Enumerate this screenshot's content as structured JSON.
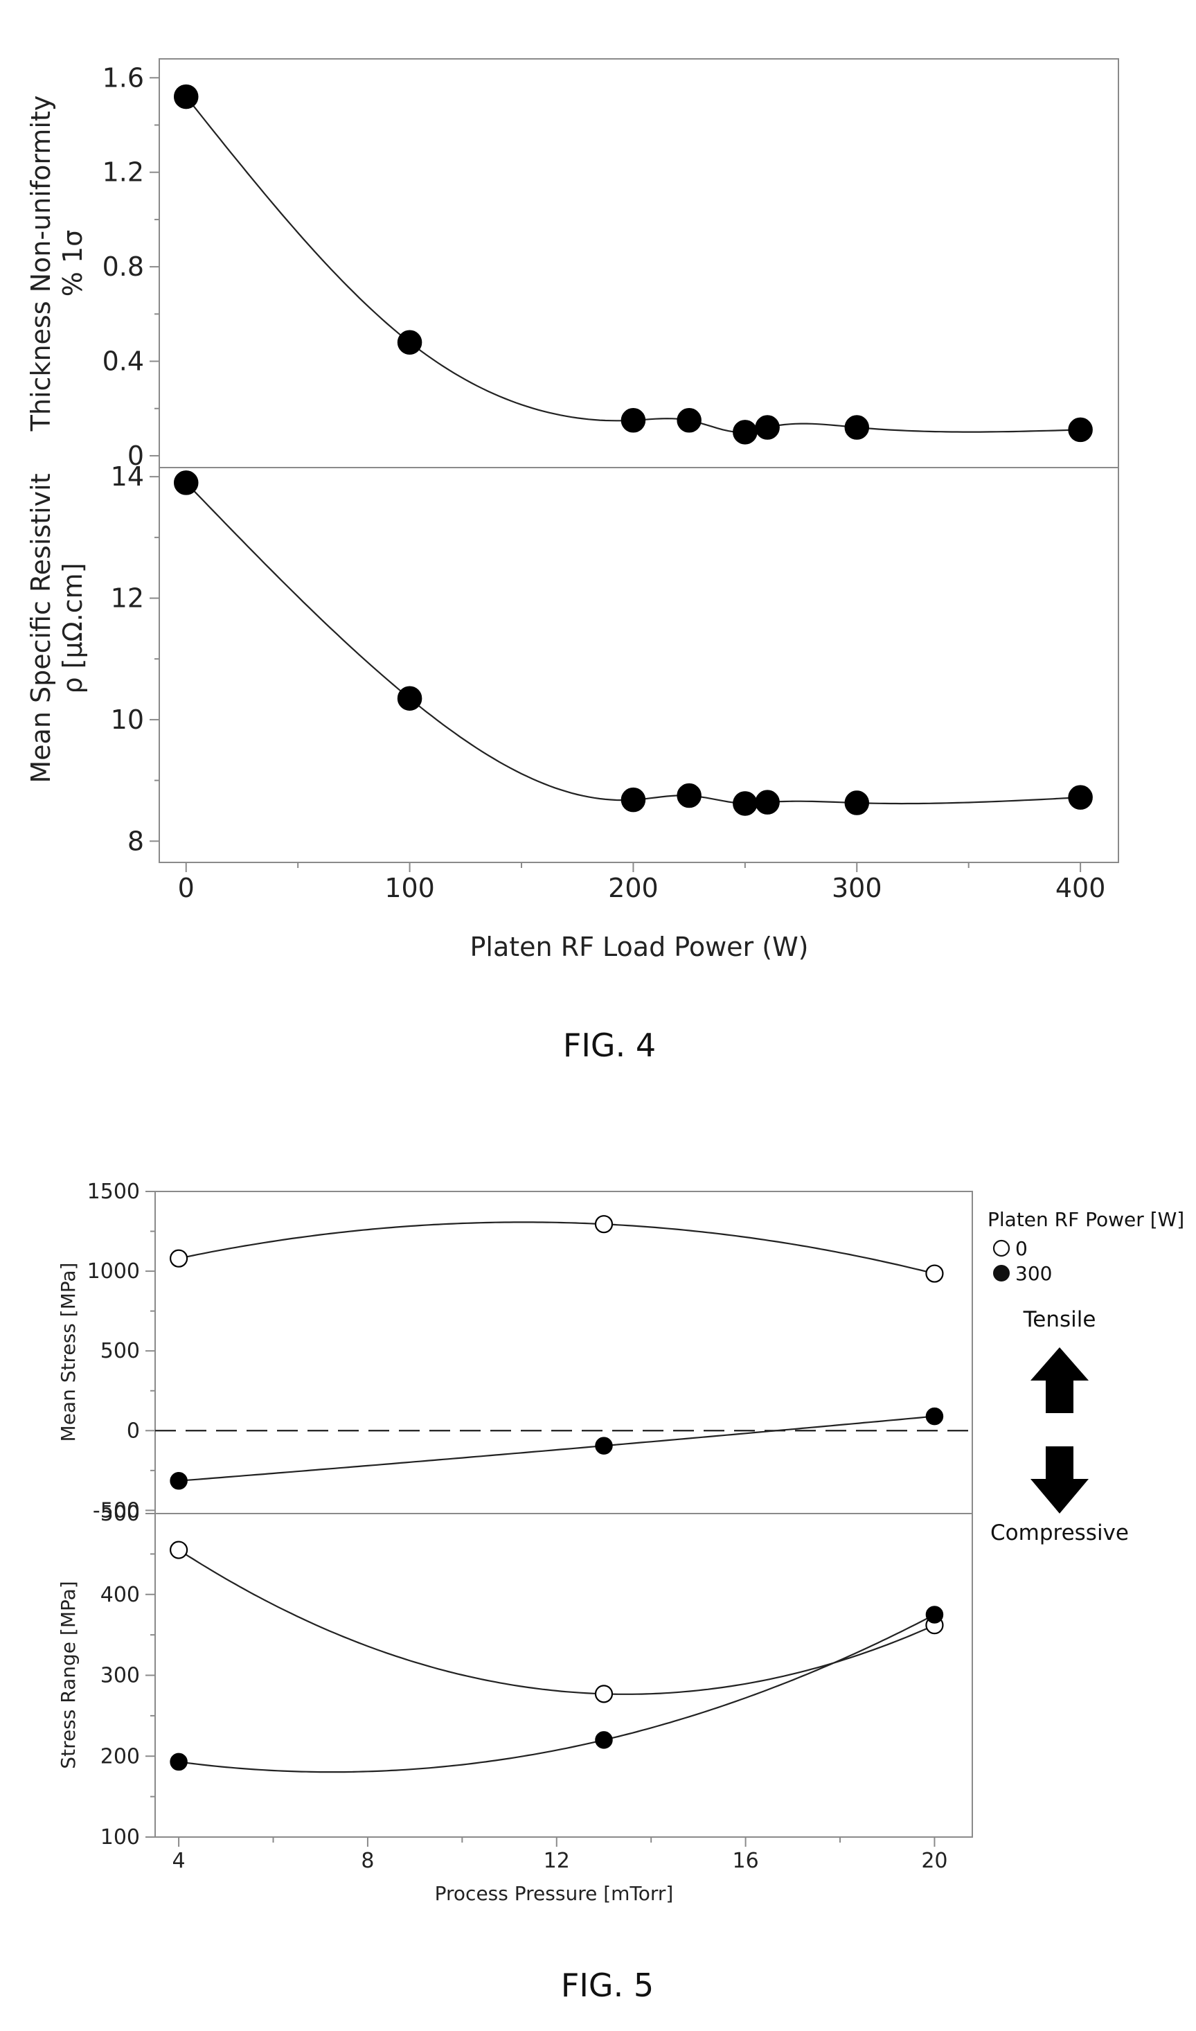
{
  "figures": [
    {
      "caption": "FIG. 4"
    },
    {
      "caption": "FIG. 5"
    }
  ],
  "chart_data": [
    {
      "type": "scatter",
      "figure": "FIG. 4",
      "panel": "top",
      "ylabel_lines": [
        "Thickness Non-uniformity",
        "% 1σ"
      ],
      "xlabel": "",
      "ylim": [
        -0.05,
        1.68
      ],
      "yticks": [
        0,
        0.4,
        0.8,
        1.2,
        1.6
      ],
      "ytick_labels": [
        "0",
        "0.4",
        "0.8",
        "1.2",
        "1.6"
      ],
      "series": [
        {
          "x": [
            0,
            100,
            200,
            225,
            250,
            260,
            300,
            400
          ],
          "y": [
            1.52,
            0.48,
            0.15,
            0.15,
            0.1,
            0.12,
            0.12,
            0.11
          ],
          "marker": "filled",
          "fit": "smooth"
        }
      ]
    },
    {
      "type": "scatter",
      "figure": "FIG. 4",
      "panel": "bottom",
      "ylabel_lines": [
        "Mean Specific Resistivit",
        "ρ [μΩ.cm]"
      ],
      "xlabel": "Platen RF Load Power (W)",
      "xlim": [
        -12,
        417
      ],
      "xticks": [
        0,
        100,
        200,
        300,
        400
      ],
      "xtick_labels": [
        "0",
        "100",
        "200",
        "300",
        "400"
      ],
      "ylim": [
        7.65,
        14.15
      ],
      "yticks": [
        8,
        10,
        12,
        14
      ],
      "ytick_labels": [
        "8",
        "10",
        "12",
        "14"
      ],
      "series": [
        {
          "x": [
            0,
            100,
            200,
            225,
            250,
            260,
            300,
            400
          ],
          "y": [
            13.9,
            10.35,
            8.68,
            8.75,
            8.62,
            8.64,
            8.63,
            8.72
          ],
          "marker": "filled",
          "fit": "smooth"
        }
      ]
    },
    {
      "type": "scatter",
      "figure": "FIG. 5",
      "panel": "top",
      "ylabel": "Mean Stress [MPa]",
      "xlabel": "",
      "ylim": [
        -520,
        1500
      ],
      "yticks": [
        -500,
        0,
        500,
        1000,
        1500
      ],
      "ytick_labels": [
        "-500",
        "0",
        "500",
        "1000",
        "1500"
      ],
      "reference_line": {
        "y": 0,
        "style": "dashed"
      },
      "legend": {
        "title": "Platen RF Power [W]",
        "position": "right",
        "entries": [
          "0",
          "300"
        ]
      },
      "series": [
        {
          "name": "0",
          "marker": "open",
          "x": [
            4,
            13,
            20
          ],
          "y": [
            1080,
            1295,
            985
          ]
        },
        {
          "name": "300",
          "marker": "filled",
          "x": [
            4,
            13,
            20
          ],
          "y": [
            -315,
            -95,
            90
          ]
        }
      ],
      "annotations": {
        "tensile": "Tensile",
        "compressive": "Compressive"
      }
    },
    {
      "type": "scatter",
      "figure": "FIG. 5",
      "panel": "bottom",
      "ylabel": "Stress Range [MPa]",
      "xlabel": "Process Pressure [mTorr]",
      "xlim": [
        3.5,
        20.8
      ],
      "xticks": [
        4,
        8,
        12,
        16,
        20
      ],
      "xtick_labels": [
        "4",
        "8",
        "12",
        "16",
        "20"
      ],
      "ylim": [
        100,
        500
      ],
      "yticks": [
        100,
        200,
        300,
        400,
        500
      ],
      "ytick_labels": [
        "100",
        "200",
        "300",
        "400",
        "500"
      ],
      "series": [
        {
          "name": "0",
          "marker": "open",
          "x": [
            4,
            13,
            20
          ],
          "y": [
            455,
            277,
            362
          ]
        },
        {
          "name": "300",
          "marker": "filled",
          "x": [
            4,
            13,
            20
          ],
          "y": [
            193,
            220,
            375
          ]
        }
      ]
    }
  ]
}
